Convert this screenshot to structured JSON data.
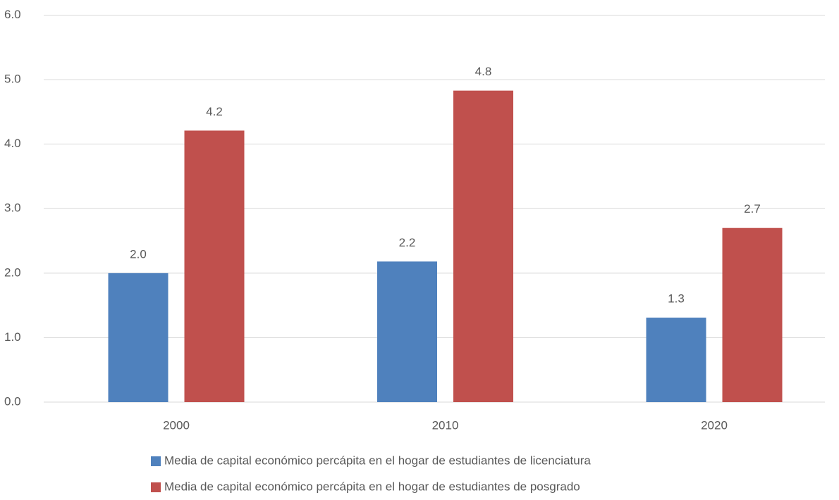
{
  "chart_data": {
    "type": "bar",
    "categories": [
      "2000",
      "2010",
      "2020"
    ],
    "series": [
      {
        "name": "Media de capital económico percápita en el hogar de estudiantes de licenciatura",
        "color": "#4f81bd",
        "values": [
          2.0,
          2.18,
          1.31
        ],
        "value_labels": [
          "2.0",
          "2.2",
          "1.3"
        ]
      },
      {
        "name": "Media de capital económico percápita en el hogar de estudiantes de posgrado",
        "color": "#c0504d",
        "values": [
          4.21,
          4.83,
          2.7
        ],
        "value_labels": [
          "4.2",
          "4.8",
          "2.7"
        ]
      }
    ],
    "ylim": [
      0,
      6
    ],
    "yticks": [
      {
        "value": 0,
        "label": "0.0"
      },
      {
        "value": 1,
        "label": "1.0"
      },
      {
        "value": 2,
        "label": "2.0"
      },
      {
        "value": 3,
        "label": "3.0"
      },
      {
        "value": 4,
        "label": "4.0"
      },
      {
        "value": 5,
        "label": "5.0"
      },
      {
        "value": 6,
        "label": "6.0"
      }
    ],
    "grid": true,
    "legend": "bottom"
  }
}
